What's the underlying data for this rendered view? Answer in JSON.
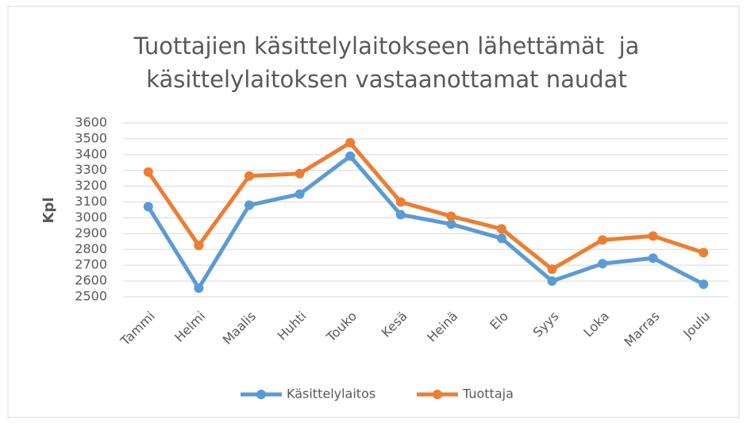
{
  "chart_data": {
    "type": "line",
    "title": [
      "Tuottajien käsittelylaitokseen lähettämät  ja",
      "käsittelylaitoksen vastaanottamat naudat"
    ],
    "y_label": "Kpl",
    "categories": [
      "Tammi",
      "Helmi",
      "Maalis",
      "Huhti",
      "Touko",
      "Kesä",
      "Heinä",
      "Elo",
      "Syys",
      "Loka",
      "Marras",
      "Joulu"
    ],
    "series": [
      {
        "name": "Käsittelylaitos",
        "color": "#5b9bd5",
        "values": [
          3070,
          2555,
          3080,
          3150,
          3390,
          3020,
          2960,
          2870,
          2600,
          2710,
          2745,
          2580
        ]
      },
      {
        "name": "Tuottaja",
        "color": "#ed7d31",
        "values": [
          3290,
          2825,
          3265,
          3280,
          3475,
          3100,
          3010,
          2930,
          2675,
          2860,
          2885,
          2780
        ]
      }
    ],
    "ylim": [
      2500,
      3600
    ],
    "yticks": [
      2500,
      2600,
      2700,
      2800,
      2900,
      3000,
      3100,
      3200,
      3300,
      3400,
      3500,
      3600
    ],
    "grid": true,
    "legend": "bottom"
  }
}
